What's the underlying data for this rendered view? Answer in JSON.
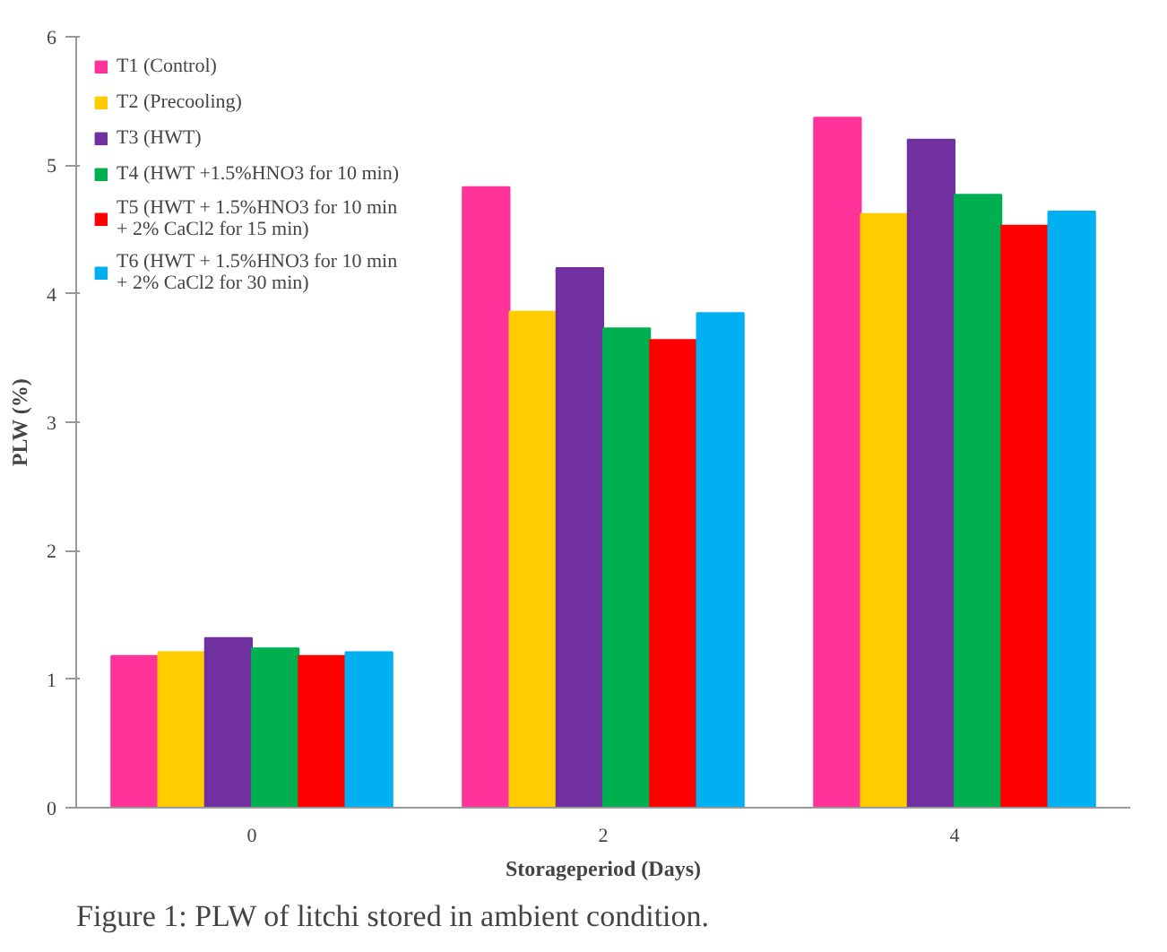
{
  "chart_data": {
    "type": "bar",
    "categories": [
      "0",
      "2",
      "4"
    ],
    "xlabel": "Storageperiod (Days)",
    "ylabel": "PLW (%)",
    "ylim": [
      0,
      6
    ],
    "yticks": [
      0,
      1,
      2,
      3,
      4,
      5,
      6
    ],
    "grid": false,
    "legend": "top left",
    "series": [
      {
        "name": "T1 (Control)",
        "color": "#ff3399",
        "values": [
          1.18,
          4.83,
          5.37
        ]
      },
      {
        "name": "T2 (Precooling)",
        "color": "#ffcc00",
        "values": [
          1.21,
          3.86,
          4.62
        ]
      },
      {
        "name": "T3 (HWT)",
        "color": "#7030a0",
        "values": [
          1.32,
          4.2,
          5.2
        ]
      },
      {
        "name": "T4 (HWT +1.5%HNO3 for 10 min)",
        "color": "#00b050",
        "values": [
          1.24,
          3.73,
          4.77
        ]
      },
      {
        "name": "T5 (HWT + 1.5%HNO3 for 10 min + 2% CaCl2 for 15 min)",
        "color": "#ff0000",
        "values": [
          1.18,
          3.64,
          4.53
        ]
      },
      {
        "name": "T6 (HWT + 1.5%HNO3 for 10 min + 2% CaCl2 for 30 min)",
        "color": "#00b0f0",
        "values": [
          1.21,
          3.85,
          4.64
        ]
      }
    ],
    "annotations": [
      "Figure 1: PLW of litchi stored in ambient condition."
    ]
  }
}
